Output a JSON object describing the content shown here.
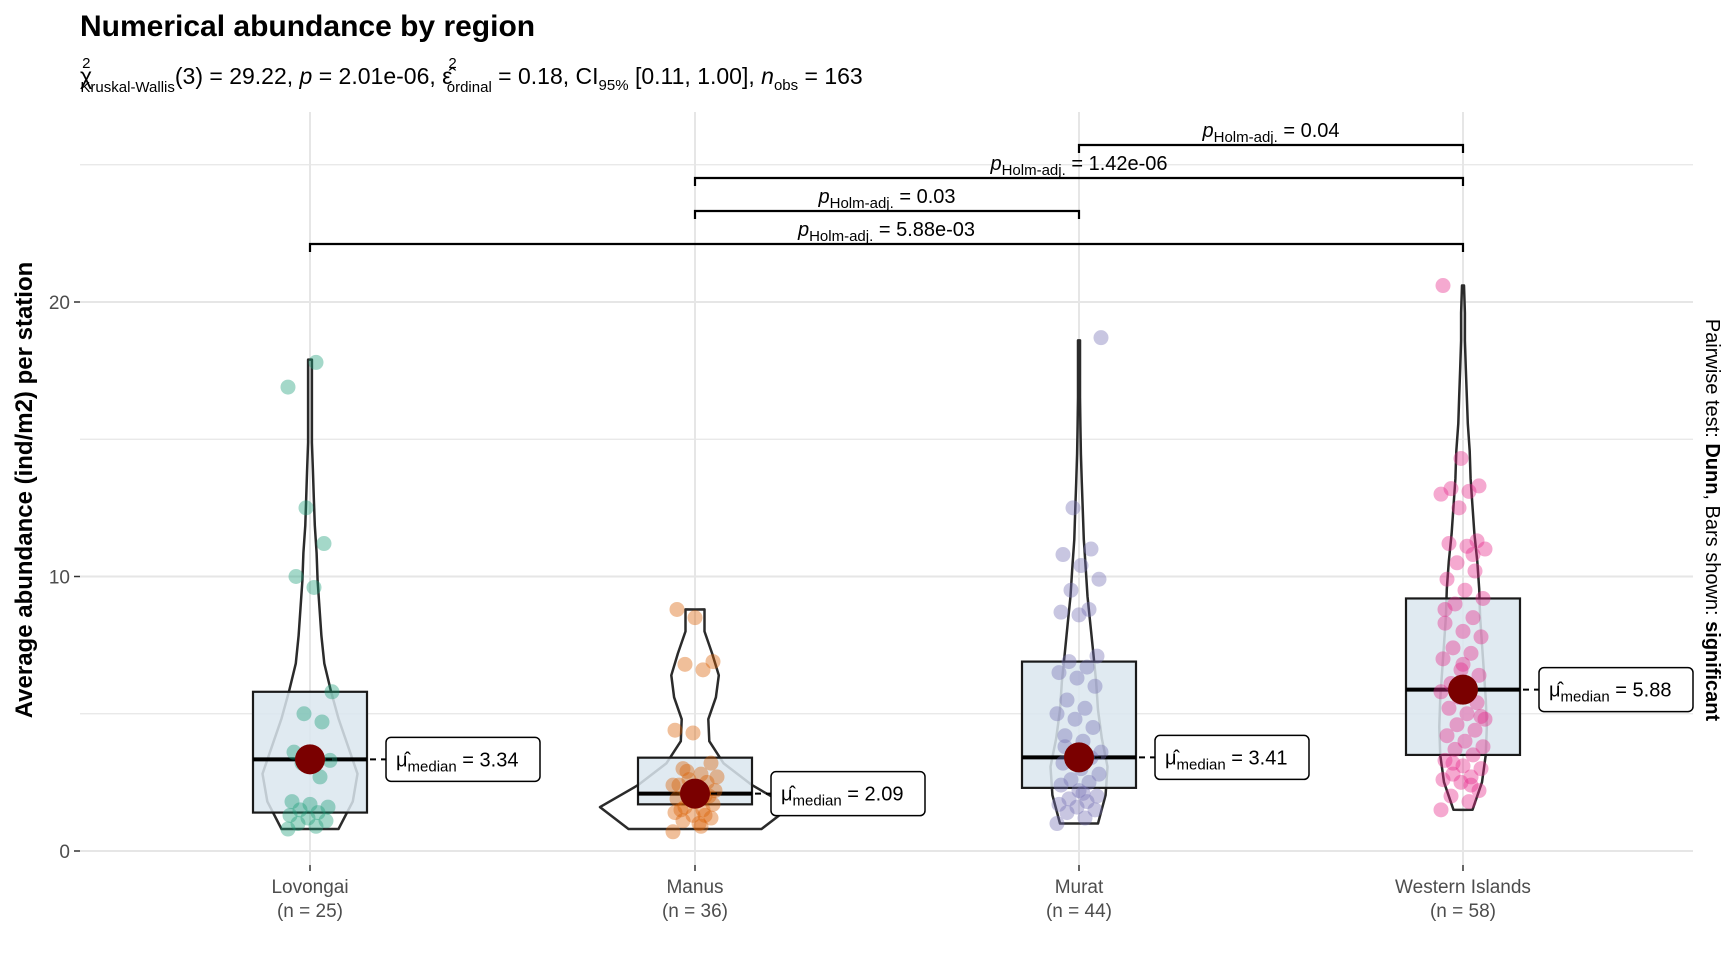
{
  "chart_data": {
    "type": "violin-box-scatter",
    "title": "Numerical abundance by region",
    "subtitle": {
      "chi_symbol": "χ",
      "chi_sup": "2",
      "chi_sub": "Kruskal-Wallis",
      "df_part": "(3) = 29.22, ",
      "p_sym": "p",
      "p_part": " = 2.01e-06, ",
      "eps_symbol": "ε̂",
      "eps_sup": "2",
      "eps_sub": "ordinal",
      "eps_part": " = 0.18, CI",
      "ci_sub": "95%",
      "ci_part": " [0.11, 1.00], ",
      "n_sym": "n",
      "n_sub": "obs",
      "n_part": " = 163"
    },
    "ylabel": "Average abundance (ind/m2) per station",
    "ylim": [
      0,
      25
    ],
    "yticks": [
      "0",
      "10",
      "20"
    ],
    "grid": true,
    "caption": {
      "pre": "Pairwise test: ",
      "test": "Dunn",
      "mid": ", Bars shown: ",
      "which": "significant"
    },
    "groups": [
      {
        "name": "Lovongai",
        "n_label": "(n = 25)",
        "color": "#1B9E77",
        "median": 3.34,
        "median_label": "= 3.34",
        "box": {
          "q1": 1.4,
          "q3": 5.8
        },
        "violin": {
          "min": 0.8,
          "max": 17.9,
          "w": [
            0.3,
            0.45,
            0.5,
            0.4,
            0.3,
            0.22,
            0.15,
            0.12,
            0.1,
            0.08,
            0.07,
            0.05,
            0.04,
            0.03,
            0.02,
            0.02,
            0.02,
            0.02
          ]
        },
        "points": [
          0.8,
          0.9,
          1.0,
          1.1,
          1.2,
          1.3,
          1.4,
          1.5,
          1.6,
          1.7,
          1.8,
          2.7,
          3.2,
          3.3,
          3.4,
          3.6,
          4.7,
          5.0,
          5.8,
          9.6,
          10.0,
          11.2,
          12.5,
          16.9,
          17.8
        ]
      },
      {
        "name": "Manus",
        "n_label": "(n = 36)",
        "color": "#D95F02",
        "median": 2.09,
        "median_label": "= 2.09",
        "box": {
          "q1": 1.7,
          "q3": 3.4
        },
        "violin": {
          "min": 0.8,
          "max": 8.8,
          "w": [
            0.7,
            1.0,
            0.6,
            0.3,
            0.15,
            0.14,
            0.22,
            0.25,
            0.18,
            0.1,
            0.1
          ]
        },
        "points": [
          0.7,
          0.9,
          1.1,
          1.2,
          1.3,
          1.4,
          1.5,
          1.6,
          1.7,
          1.8,
          1.9,
          2.0,
          2.1,
          2.2,
          2.3,
          2.4,
          2.5,
          2.6,
          2.7,
          1.0,
          1.5,
          2.0,
          2.2,
          2.4,
          2.8,
          3.0,
          3.2,
          4.3,
          4.4,
          6.6,
          6.8,
          6.9,
          8.5,
          8.8,
          1.3,
          2.9
        ]
      },
      {
        "name": "Murat",
        "n_label": "(n = 44)",
        "color": "#7570B3",
        "median": 3.41,
        "median_label": "= 3.41",
        "box": {
          "q1": 2.3,
          "q3": 6.9
        },
        "violin": {
          "min": 1.0,
          "max": 18.6,
          "w": [
            0.2,
            0.28,
            0.3,
            0.24,
            0.2,
            0.18,
            0.15,
            0.12,
            0.09,
            0.07,
            0.05,
            0.04,
            0.03,
            0.02,
            0.015,
            0.01,
            0.01,
            0.01
          ]
        },
        "points": [
          1.0,
          1.2,
          1.4,
          1.5,
          1.6,
          1.7,
          1.8,
          1.9,
          2.0,
          2.2,
          2.4,
          2.5,
          2.6,
          2.8,
          3.0,
          3.2,
          3.4,
          3.5,
          3.6,
          4.0,
          4.2,
          4.5,
          4.8,
          5.0,
          5.2,
          5.5,
          6.0,
          6.3,
          6.5,
          6.7,
          6.9,
          7.1,
          8.6,
          8.7,
          8.8,
          9.5,
          9.9,
          10.4,
          10.8,
          11.0,
          12.5,
          18.7,
          2.1,
          3.8
        ]
      },
      {
        "name": "Western Islands",
        "n_label": "(n = 58)",
        "color": "#E7298A",
        "median": 5.88,
        "median_label": "= 5.88",
        "box": {
          "q1": 3.5,
          "q3": 9.2
        },
        "violin": {
          "min": 1.5,
          "max": 20.6,
          "w": [
            0.1,
            0.2,
            0.24,
            0.25,
            0.24,
            0.22,
            0.2,
            0.18,
            0.17,
            0.15,
            0.12,
            0.1,
            0.08,
            0.07,
            0.05,
            0.04,
            0.03,
            0.02,
            0.02,
            0.01
          ]
        },
        "points": [
          1.5,
          1.8,
          2.0,
          2.2,
          2.5,
          2.6,
          2.7,
          2.8,
          3.0,
          3.1,
          3.3,
          3.5,
          3.7,
          3.8,
          4.0,
          4.2,
          4.4,
          4.6,
          4.8,
          5.0,
          5.2,
          5.4,
          5.6,
          5.8,
          6.0,
          6.1,
          6.4,
          6.6,
          7.0,
          7.2,
          7.4,
          7.8,
          8.0,
          8.3,
          8.5,
          9.0,
          9.2,
          9.5,
          9.9,
          10.2,
          10.5,
          11.0,
          11.1,
          11.2,
          11.3,
          12.5,
          13.0,
          13.1,
          13.2,
          13.3,
          14.3,
          20.6,
          2.4,
          3.2,
          4.9,
          6.8,
          8.8,
          10.8
        ]
      }
    ],
    "pairwise": [
      {
        "from": 2,
        "to": 3,
        "p_sym": "p",
        "p_sub": "Holm-adj.",
        "value": "= 0.04"
      },
      {
        "from": 1,
        "to": 3,
        "p_sym": "p",
        "p_sub": "Holm-adj.",
        "value": "= 1.42e-06"
      },
      {
        "from": 1,
        "to": 2,
        "p_sym": "p",
        "p_sub": "Holm-adj.",
        "value": "= 0.03"
      },
      {
        "from": 0,
        "to": 3,
        "p_sym": "p",
        "p_sub": "Holm-adj.",
        "value": "= 5.88e-03"
      }
    ],
    "median_symbol": "μ̂",
    "median_sub": "median",
    "colors": {
      "box_fill": "#dbe6ee",
      "median_dot": "#7a0000",
      "grid": "#e6e6e6",
      "bracket": "#000000"
    }
  }
}
